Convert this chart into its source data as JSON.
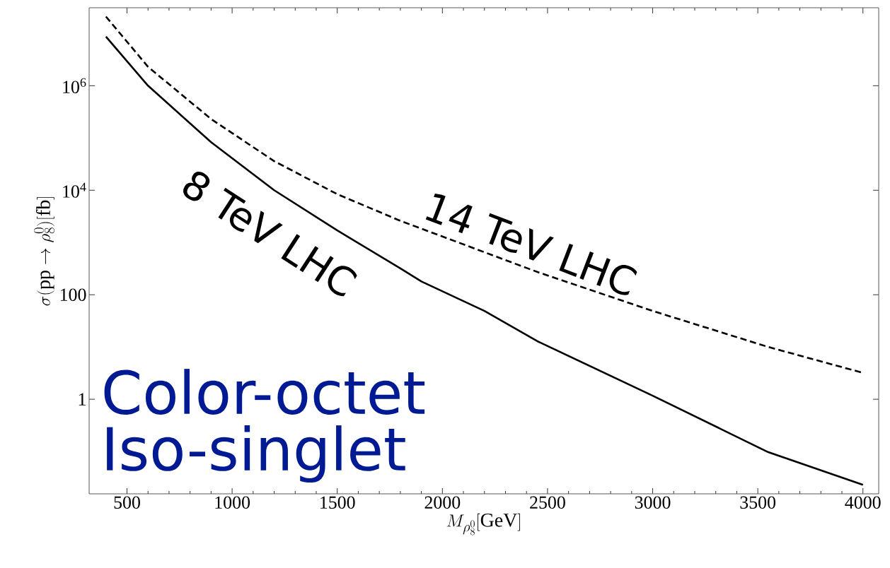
{
  "chart_data": {
    "type": "line",
    "log": "y",
    "xlabel": "M_{\\rho_8^0}[\\mathrm{GeV}]",
    "ylabel": "\\sigma(\\mathrm{pp}\\to\\rho_8^0)[\\mathrm{fb}]",
    "xlim": [
      320,
      4075
    ],
    "ylim": [
      0.0155,
      31000000
    ],
    "xticks": [
      500,
      1000,
      1500,
      2000,
      2500,
      3000,
      3500,
      4000
    ],
    "yticks": [
      1,
      100,
      {
        "value": 10000,
        "label": "10$^{4}$"
      },
      {
        "value": 1000000,
        "label": "10$^{6}$"
      }
    ],
    "annotations": [
      "Color-octet",
      "Iso-singlet"
    ],
    "series": [
      {
        "name": "8 TeV LHC",
        "color": "#000000",
        "line_style": "solid",
        "x": [
          400,
          600,
          900,
          1200,
          1500,
          1800,
          1900,
          2200,
          2450,
          3000,
          3550,
          4000
        ],
        "values": [
          8700000,
          1000000,
          83000,
          10000,
          1700,
          320,
          180,
          49,
          13,
          1.17,
          0.097,
          0.023
        ]
      },
      {
        "name": "14 TeV LHC",
        "color": "#000000",
        "line_style": "dashed",
        "x": [
          400,
          600,
          900,
          1200,
          1500,
          1800,
          2450,
          3000,
          3550,
          4000
        ],
        "values": [
          21000000,
          2300000,
          230000,
          36000,
          8400,
          2600,
          274,
          49,
          10,
          3.2
        ]
      }
    ]
  }
}
